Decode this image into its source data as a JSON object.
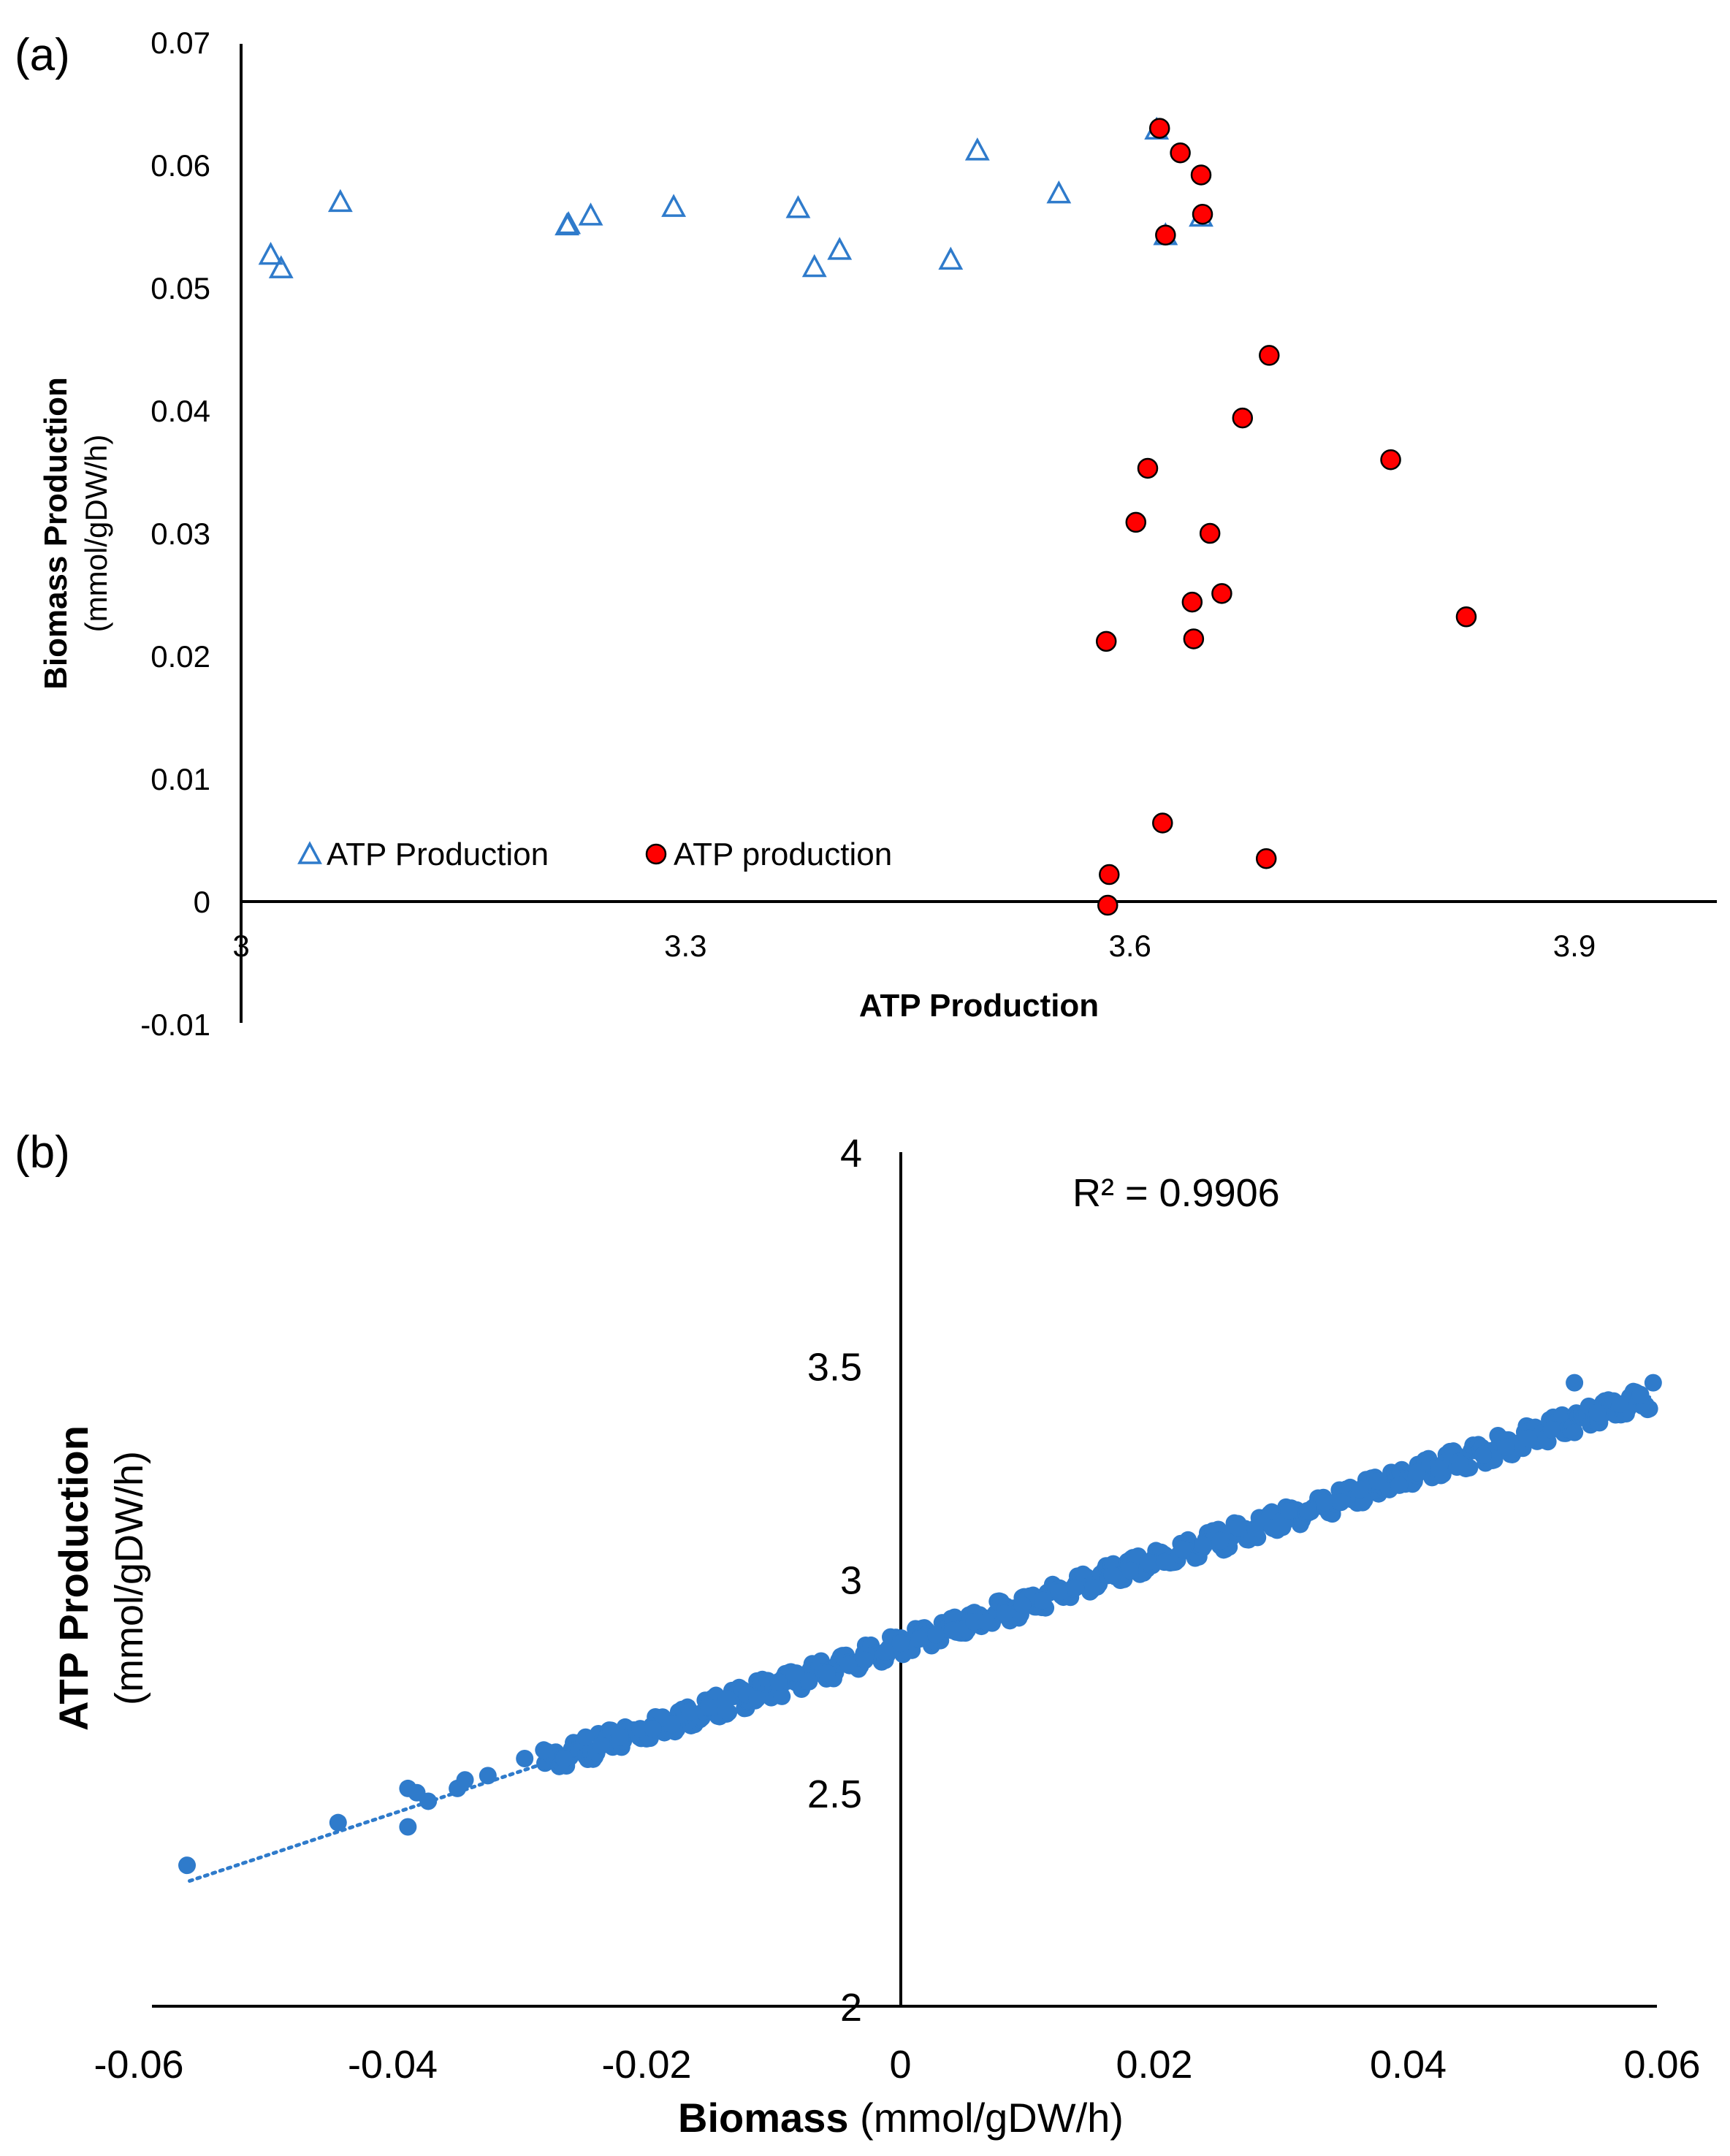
{
  "colors": {
    "blue": "#2F7BCB",
    "red": "#FF0000",
    "axis": "#000000"
  },
  "chart_data": [
    {
      "panel_label": "(a)",
      "type": "scatter",
      "xlabel": "ATP Production",
      "ylabel": "Biomass Production",
      "ylabel_sub": "(mmol/gDW/h)",
      "xlim": [
        3.0,
        4.0
      ],
      "ylim": [
        -0.01,
        0.07
      ],
      "xticks": [
        3.0,
        3.3,
        3.6,
        3.9
      ],
      "xtick_labels": [
        "3",
        "3.3",
        "3.6",
        "3.9"
      ],
      "yticks": [
        -0.01,
        0,
        0.01,
        0.02,
        0.03,
        0.04,
        0.05,
        0.06,
        0.07
      ],
      "ytick_labels": [
        "-0.01",
        "0",
        "0.01",
        "0.02",
        "0.03",
        "0.04",
        "0.05",
        "0.06",
        "0.07"
      ],
      "legend": [
        "ATP Production",
        "ATP production"
      ],
      "legend_placement": "bottom-left",
      "series": [
        {
          "name": "ATP Production",
          "marker": "triangle-open",
          "color": "#2F7BCB",
          "x": [
            3.02,
            3.027,
            3.067,
            3.22,
            3.221,
            3.236,
            3.292,
            3.376,
            3.387,
            3.404,
            3.479,
            3.497,
            3.552,
            3.618,
            3.624,
            3.648
          ],
          "y": [
            0.0527,
            0.0516,
            0.057,
            0.0551,
            0.0552,
            0.0559,
            0.0566,
            0.0565,
            0.0517,
            0.0531,
            0.0523,
            0.0612,
            0.0577,
            0.0629,
            0.0543,
            0.0558
          ]
        },
        {
          "name": "ATP production",
          "marker": "circle",
          "color": "#FF0000",
          "x": [
            3.62,
            3.634,
            3.648,
            3.649,
            3.624,
            3.694,
            3.676,
            3.776,
            3.612,
            3.604,
            3.654,
            3.642,
            3.662,
            3.584,
            3.643,
            3.827,
            3.622,
            3.586,
            3.692,
            3.585
          ],
          "y": [
            0.063,
            0.061,
            0.0592,
            0.056,
            0.0543,
            0.0445,
            0.0394,
            0.036,
            0.0353,
            0.0309,
            0.03,
            0.0244,
            0.0251,
            0.0212,
            0.0214,
            0.0232,
            0.0064,
            0.0022,
            0.0035,
            -0.0003
          ]
        }
      ]
    },
    {
      "panel_label": "(b)",
      "type": "scatter",
      "xlabel": "Biomass",
      "xlabel_unit": "(mmol/gDW/h)",
      "ylabel": "ATP Production",
      "ylabel_sub": "(mmol/gDW/h)",
      "xlim": [
        -0.06,
        0.06
      ],
      "ylim": [
        2.0,
        4.0
      ],
      "xticks": [
        -0.06,
        -0.04,
        -0.02,
        0,
        0.02,
        0.04,
        0.06
      ],
      "xtick_labels": [
        "-0.06",
        "-0.04",
        "-0.02",
        "0",
        "0.02",
        "0.04",
        "0.06"
      ],
      "yticks": [
        2.0,
        2.5,
        3.0,
        3.5,
        4.0
      ],
      "ytick_labels": [
        "2",
        "2.5",
        "3",
        "3.5",
        "4"
      ],
      "annotation": "R² = 0.9906",
      "trendline": {
        "type": "linear",
        "slope": 9.85,
        "intercept": 2.845,
        "style": "dotted",
        "x_range": [
          -0.056,
          0.059
        ]
      },
      "series": [
        {
          "name": "ATP Production",
          "marker": "circle",
          "color": "#2F7BCB",
          "x": [
            -0.0562,
            -0.0443,
            -0.0388,
            -0.0388,
            -0.0381,
            -0.0372,
            -0.0349,
            -0.0343,
            -0.0325,
            -0.0296,
            -0.0281,
            -0.0265,
            -0.0248,
            -0.0236,
            -0.0221,
            -0.0205,
            -0.0195,
            -0.018,
            -0.0166,
            -0.0151,
            -0.0137,
            -0.0121,
            -0.0113,
            -0.0096,
            -0.0082,
            -0.0072,
            -0.0058,
            -0.0041,
            -0.0028,
            -0.0012,
            0.0,
            0.0015,
            0.0028,
            0.0041,
            0.0058,
            0.0068,
            0.0082,
            0.0096,
            0.0112,
            0.0125,
            0.0138,
            0.0152,
            0.0167,
            0.0181,
            0.0195,
            0.0208,
            0.0222,
            0.0238,
            0.0252,
            0.0266,
            0.028,
            0.0293,
            0.0306,
            0.0321,
            0.0334,
            0.0347,
            0.0362,
            0.0376,
            0.0393,
            0.0407,
            0.0424,
            0.0441,
            0.0459,
            0.0477,
            0.0495,
            0.0513,
            0.0531,
            0.0549,
            0.0567,
            0.0583,
            0.0593
          ],
          "y": [
            2.33,
            2.43,
            2.42,
            2.51,
            2.5,
            2.48,
            2.51,
            2.53,
            2.54,
            2.58,
            2.6,
            2.58,
            2.63,
            2.61,
            2.63,
            2.65,
            2.65,
            2.66,
            2.69,
            2.7,
            2.72,
            2.73,
            2.72,
            2.76,
            2.78,
            2.76,
            2.78,
            2.8,
            2.81,
            2.83,
            2.85,
            2.86,
            2.87,
            2.88,
            2.9,
            2.9,
            2.92,
            2.94,
            2.95,
            2.97,
            2.98,
            2.98,
            3.01,
            3.02,
            3.04,
            3.04,
            3.07,
            3.08,
            3.09,
            3.12,
            3.12,
            3.12,
            3.16,
            3.16,
            3.18,
            3.18,
            3.21,
            3.23,
            3.22,
            3.25,
            3.26,
            3.27,
            3.29,
            3.31,
            3.33,
            3.35,
            3.46,
            3.39,
            3.41,
            3.43,
            3.46
          ]
        }
      ]
    }
  ]
}
